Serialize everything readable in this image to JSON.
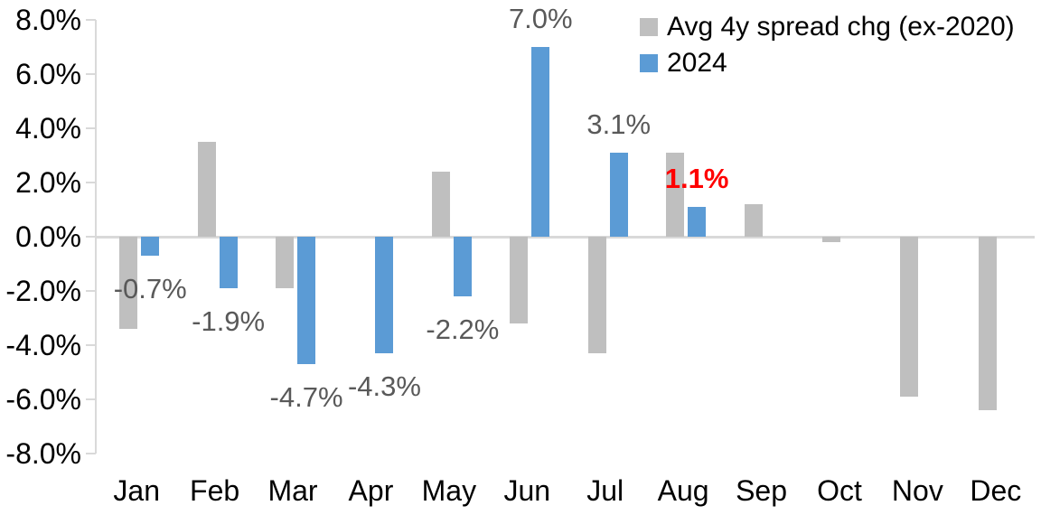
{
  "chart_data": {
    "type": "bar",
    "title": "",
    "xlabel": "",
    "ylabel": "",
    "categories": [
      "Jan",
      "Feb",
      "Mar",
      "Apr",
      "May",
      "Jun",
      "Jul",
      "Aug",
      "Sep",
      "Oct",
      "Nov",
      "Dec"
    ],
    "series": [
      {
        "name": "Avg 4y spread chg (ex-2020)",
        "color": "#BFBFBF",
        "values": [
          -3.4,
          3.5,
          -1.9,
          0.0,
          2.4,
          -3.2,
          -4.3,
          3.1,
          1.2,
          -0.2,
          -5.9,
          -6.4
        ]
      },
      {
        "name": "2024",
        "color": "#5B9BD5",
        "values": [
          -0.7,
          -1.9,
          -4.7,
          -4.3,
          -2.2,
          7.0,
          3.1,
          1.1,
          null,
          null,
          null,
          null
        ],
        "labels": [
          {
            "text": "-0.7%",
            "color": "#595959",
            "bold": false
          },
          {
            "text": "-1.9%",
            "color": "#595959",
            "bold": false
          },
          {
            "text": "-4.7%",
            "color": "#595959",
            "bold": false
          },
          {
            "text": "-4.3%",
            "color": "#595959",
            "bold": false
          },
          {
            "text": "-2.2%",
            "color": "#595959",
            "bold": false
          },
          {
            "text": "7.0%",
            "color": "#595959",
            "bold": false
          },
          {
            "text": "3.1%",
            "color": "#595959",
            "bold": false
          },
          {
            "text": "1.1%",
            "color": "#FF0000",
            "bold": true
          },
          null,
          null,
          null,
          null
        ]
      }
    ],
    "yticks": [
      "8.0%",
      "6.0%",
      "4.0%",
      "2.0%",
      "0.0%",
      "-2.0%",
      "-4.0%",
      "-6.0%",
      "-8.0%"
    ],
    "ylim": [
      -8,
      8
    ],
    "grid": false,
    "legend_position": "top-right",
    "axis_color": "#D9D9D9",
    "tick_label_color": "#000000",
    "data_label_color": "#595959",
    "highlight_label_color": "#FF0000"
  }
}
